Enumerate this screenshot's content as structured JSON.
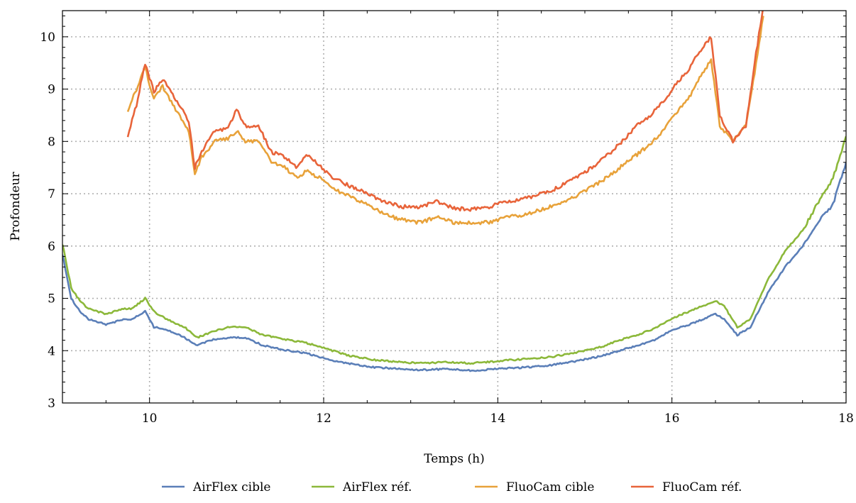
{
  "chart_data": {
    "type": "line",
    "title": "",
    "xlabel": "Temps (h)",
    "ylabel": "Profondeur",
    "xlim": [
      9,
      18
    ],
    "ylim": [
      3,
      10.5
    ],
    "x_ticks": [
      10,
      12,
      14,
      16,
      18
    ],
    "x_tick_labels": [
      "10",
      "12",
      "14",
      "16",
      "18"
    ],
    "y_ticks": [
      3,
      4,
      5,
      6,
      7,
      8,
      9,
      10
    ],
    "y_tick_labels": [
      "3",
      "4",
      "5",
      "6",
      "7",
      "8",
      "9",
      "10"
    ],
    "grid": true,
    "legend_position": "bottom",
    "series": [
      {
        "name": "AirFlex cible",
        "color": "#5b7fb8",
        "x": [
          9.0,
          9.1,
          9.2,
          9.3,
          9.5,
          9.7,
          9.8,
          9.95,
          10.05,
          10.2,
          10.4,
          10.55,
          10.7,
          10.9,
          11.1,
          11.3,
          11.6,
          11.8,
          12.0,
          12.3,
          12.6,
          12.9,
          13.1,
          13.4,
          13.7,
          14.0,
          14.3,
          14.6,
          14.9,
          15.2,
          15.4,
          15.6,
          15.8,
          16.0,
          16.2,
          16.35,
          16.5,
          16.6,
          16.75,
          16.9,
          17.1,
          17.3,
          17.5,
          17.7,
          17.85,
          18.0
        ],
        "values": [
          5.85,
          5.0,
          4.75,
          4.6,
          4.5,
          4.6,
          4.6,
          4.75,
          4.45,
          4.4,
          4.25,
          4.1,
          4.2,
          4.25,
          4.25,
          4.1,
          4.0,
          3.95,
          3.85,
          3.75,
          3.68,
          3.65,
          3.63,
          3.65,
          3.62,
          3.65,
          3.68,
          3.72,
          3.8,
          3.9,
          4.0,
          4.1,
          4.2,
          4.4,
          4.5,
          4.6,
          4.7,
          4.6,
          4.3,
          4.45,
          5.1,
          5.6,
          6.0,
          6.5,
          6.8,
          7.6
        ]
      },
      {
        "name": "AirFlex réf.",
        "color": "#8cb83a",
        "x": [
          9.0,
          9.1,
          9.2,
          9.3,
          9.5,
          9.7,
          9.8,
          9.95,
          10.05,
          10.2,
          10.4,
          10.55,
          10.7,
          10.9,
          11.1,
          11.3,
          11.6,
          11.8,
          12.0,
          12.3,
          12.6,
          12.9,
          13.1,
          13.4,
          13.7,
          14.0,
          14.3,
          14.6,
          14.9,
          15.2,
          15.4,
          15.6,
          15.8,
          16.0,
          16.2,
          16.35,
          16.5,
          16.6,
          16.75,
          16.9,
          17.1,
          17.3,
          17.5,
          17.7,
          17.85,
          18.0
        ],
        "values": [
          6.05,
          5.2,
          4.95,
          4.8,
          4.7,
          4.8,
          4.8,
          5.0,
          4.75,
          4.6,
          4.45,
          4.25,
          4.35,
          4.45,
          4.45,
          4.3,
          4.2,
          4.15,
          4.05,
          3.9,
          3.82,
          3.78,
          3.76,
          3.78,
          3.76,
          3.8,
          3.84,
          3.88,
          3.96,
          4.08,
          4.2,
          4.3,
          4.42,
          4.62,
          4.75,
          4.85,
          4.95,
          4.85,
          4.45,
          4.6,
          5.35,
          5.9,
          6.3,
          6.9,
          7.3,
          8.1
        ]
      },
      {
        "name": "FluoCam cible",
        "color": "#e8a23a",
        "x": [
          9.75,
          9.85,
          9.95,
          10.05,
          10.15,
          10.3,
          10.45,
          10.52,
          10.6,
          10.75,
          10.9,
          11.0,
          11.1,
          11.25,
          11.4,
          11.55,
          11.7,
          11.8,
          11.95,
          12.1,
          12.3,
          12.5,
          12.7,
          12.9,
          13.1,
          13.3,
          13.5,
          13.7,
          13.9,
          14.1,
          14.3,
          14.6,
          14.9,
          15.2,
          15.4,
          15.6,
          15.75,
          15.9,
          16.05,
          16.2,
          16.35,
          16.45,
          16.55,
          16.7,
          16.85,
          16.95,
          17.05
        ],
        "values": [
          8.6,
          9.0,
          9.4,
          8.8,
          9.05,
          8.6,
          8.2,
          7.4,
          7.7,
          8.0,
          8.05,
          8.2,
          8.0,
          8.0,
          7.6,
          7.5,
          7.3,
          7.45,
          7.3,
          7.1,
          6.95,
          6.8,
          6.6,
          6.5,
          6.45,
          6.55,
          6.45,
          6.45,
          6.45,
          6.55,
          6.6,
          6.75,
          6.95,
          7.25,
          7.5,
          7.75,
          7.95,
          8.2,
          8.55,
          8.85,
          9.3,
          9.55,
          8.3,
          8.0,
          8.3,
          9.3,
          10.4
        ]
      },
      {
        "name": "FluoCam réf.",
        "color": "#e8643a",
        "x": [
          9.75,
          9.85,
          9.95,
          10.05,
          10.15,
          10.3,
          10.45,
          10.52,
          10.6,
          10.75,
          10.9,
          11.0,
          11.1,
          11.25,
          11.4,
          11.55,
          11.7,
          11.8,
          11.95,
          12.1,
          12.3,
          12.5,
          12.7,
          12.9,
          13.1,
          13.3,
          13.5,
          13.7,
          13.9,
          14.1,
          14.3,
          14.6,
          14.9,
          15.2,
          15.4,
          15.6,
          15.75,
          15.9,
          16.05,
          16.2,
          16.35,
          16.45,
          16.55,
          16.7,
          16.85,
          16.95,
          17.05
        ],
        "values": [
          8.1,
          8.7,
          9.5,
          8.95,
          9.2,
          8.8,
          8.4,
          7.5,
          7.8,
          8.2,
          8.25,
          8.6,
          8.3,
          8.3,
          7.8,
          7.7,
          7.5,
          7.75,
          7.55,
          7.3,
          7.15,
          7.0,
          6.85,
          6.75,
          6.75,
          6.85,
          6.72,
          6.7,
          6.75,
          6.85,
          6.9,
          7.05,
          7.3,
          7.65,
          7.95,
          8.3,
          8.5,
          8.75,
          9.1,
          9.4,
          9.8,
          10.0,
          8.5,
          8.0,
          8.3,
          9.5,
          10.6
        ]
      }
    ]
  }
}
